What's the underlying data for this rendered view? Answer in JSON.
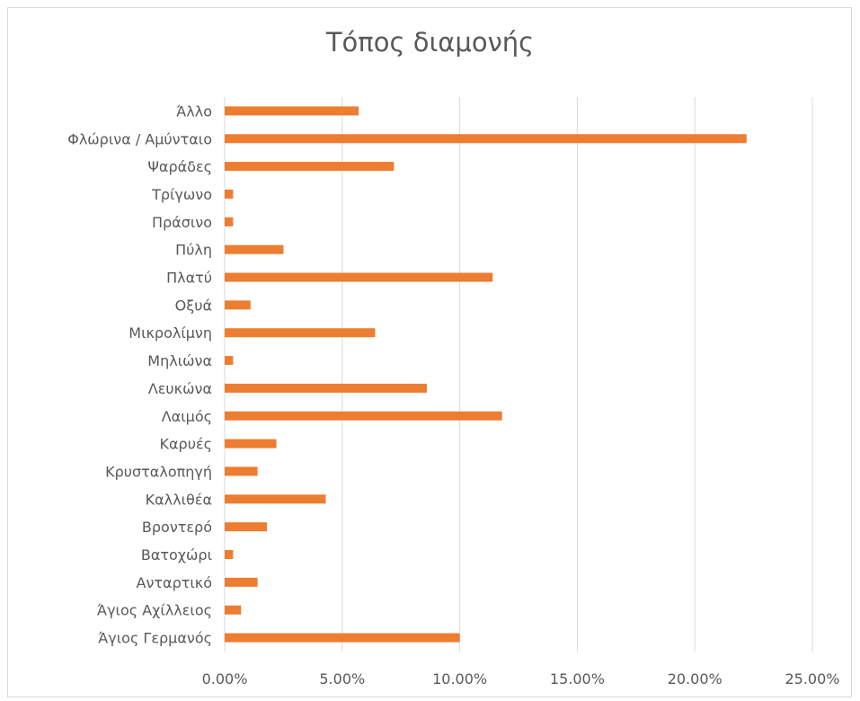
{
  "chart_data": {
    "type": "bar",
    "orientation": "horizontal",
    "title": "Τόπος διαμονής",
    "categories": [
      "Άλλο",
      "Φλώρινα / Αμύνταιο",
      "Ψαράδες",
      "Τρίγωνο",
      "Πράσινο",
      "Πύλη",
      "Πλατύ",
      "Οξυά",
      "Μικρολίμνη",
      "Μηλιώνα",
      "Λευκώνα",
      "Λαιμός",
      "Καρυές",
      "Κρυσταλοπηγή",
      "Καλλιθέα",
      "Βροντερό",
      "Βατοχώρι",
      "Ανταρτικό",
      "Άγιος Αχίλλειος",
      "Άγιος Γερμανός"
    ],
    "values": [
      5.7,
      22.2,
      7.2,
      0.36,
      0.36,
      2.5,
      11.4,
      1.1,
      6.4,
      0.36,
      8.6,
      11.8,
      2.2,
      1.4,
      4.3,
      1.8,
      0.36,
      1.4,
      0.7,
      10.0
    ],
    "xlim": [
      0,
      25
    ],
    "xticks": [
      "0.00%",
      "5.00%",
      "10.00%",
      "15.00%",
      "20.00%",
      "25.00%"
    ],
    "grid": true,
    "bar_color": "#ed7d31",
    "grid_color": "#d9d9d9",
    "text_color": "#595959"
  }
}
